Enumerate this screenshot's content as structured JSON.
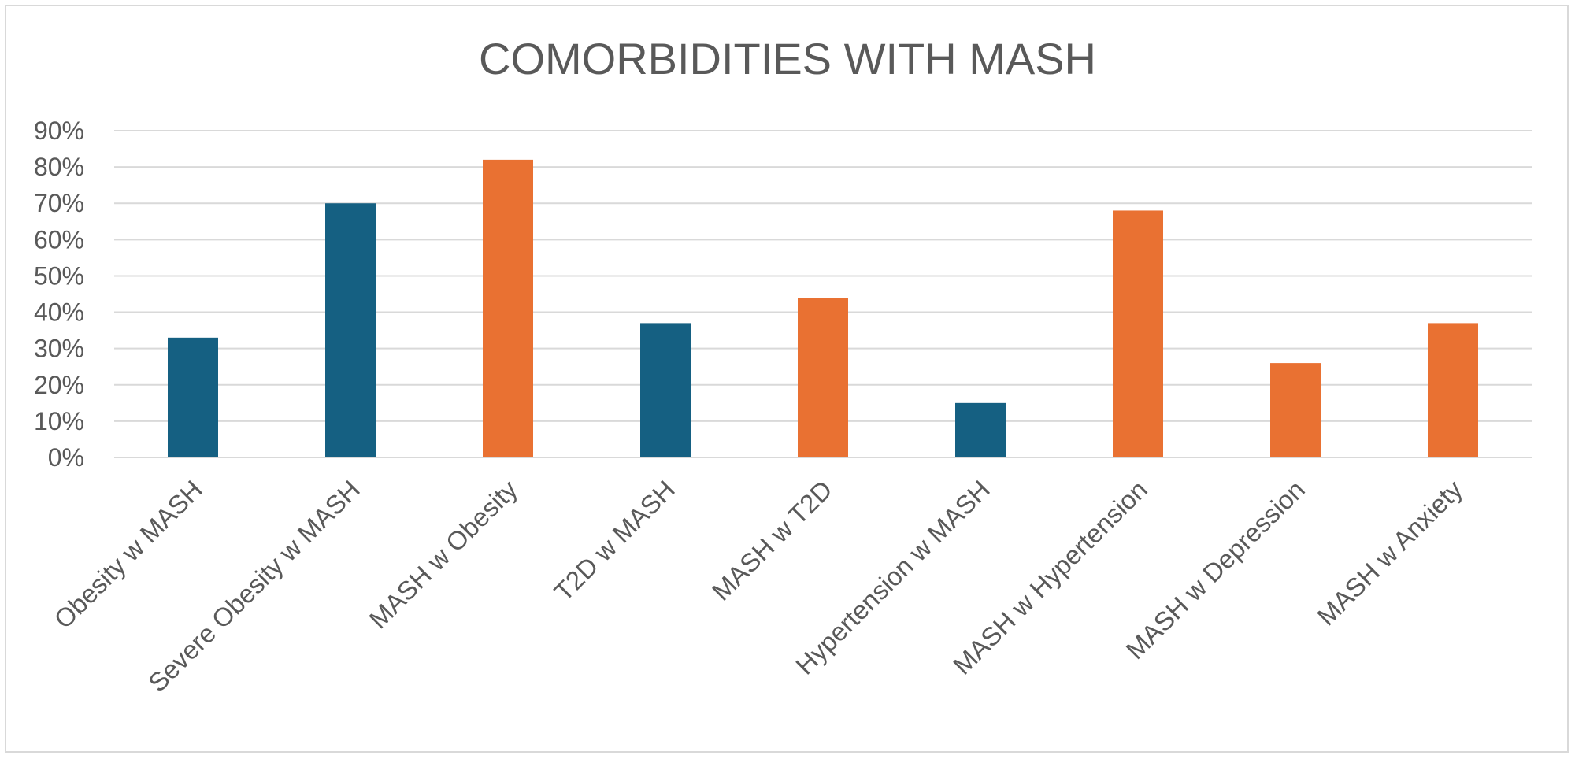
{
  "chart_data": {
    "type": "bar",
    "title": "COMORBIDITIES WITH MASH",
    "xlabel": "",
    "ylabel": "",
    "categories": [
      "Obesity w MASH",
      "Severe Obesity w MASH",
      "MASH w Obesity",
      "T2D w MASH",
      "MASH w T2D",
      "Hypertension w MASH",
      "MASH w Hypertension",
      "MASH w Depression",
      "MASH w Anxiety"
    ],
    "values": [
      0.33,
      0.7,
      0.82,
      0.37,
      0.44,
      0.15,
      0.68,
      0.26,
      0.37
    ],
    "bar_colors": [
      "#156082",
      "#156082",
      "#E97132",
      "#156082",
      "#E97132",
      "#156082",
      "#E97132",
      "#E97132",
      "#E97132"
    ],
    "ylim": [
      0,
      0.9
    ],
    "yticks": [
      0,
      0.1,
      0.2,
      0.3,
      0.4,
      0.5,
      0.6,
      0.7,
      0.8,
      0.9
    ],
    "ytick_labels": [
      "0%",
      "10%",
      "20%",
      "30%",
      "40%",
      "50%",
      "60%",
      "70%",
      "80%",
      "90%"
    ],
    "grid": true,
    "legend": "none"
  }
}
